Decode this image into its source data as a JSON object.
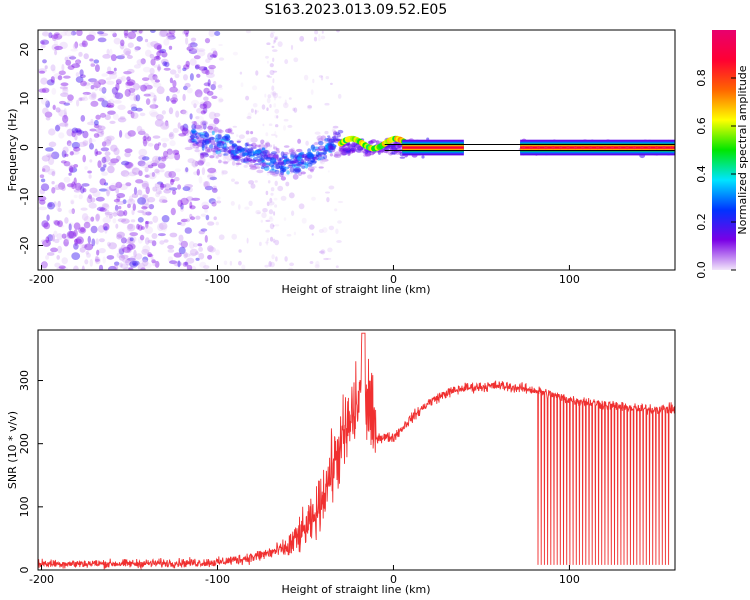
{
  "title": "S163.2023.013.09.52.E05",
  "chart_data": [
    {
      "type": "heatmap",
      "xlabel": "Height of straight line (km)",
      "ylabel": "Frequency (Hz)",
      "xlim": [
        -202,
        160
      ],
      "ylim": [
        -25,
        24
      ],
      "xticks": [
        -200,
        -100,
        0,
        100
      ],
      "yticks": [
        -20,
        -10,
        0,
        10,
        20
      ],
      "colorbar": {
        "label": "Normalized spectral amplitude",
        "range": [
          0,
          1
        ],
        "ticks": [
          0.0,
          0.2,
          0.4,
          0.6,
          0.8
        ],
        "colors": [
          "#f2e6fa",
          "#7a00e6",
          "#0033ff",
          "#00e5ff",
          "#00e600",
          "#ffff00",
          "#ff6600",
          "#ff0033",
          "#e8006e"
        ]
      },
      "reference_line_hz": 0,
      "features": {
        "noise_region_km": [
          -200,
          -30
        ],
        "transition_region_km": [
          -100,
          -30
        ],
        "carrier_region_km": [
          -30,
          160
        ],
        "data_gap_km": [
          40,
          72
        ]
      }
    },
    {
      "type": "line",
      "xlabel": "Height of straight line (km)",
      "ylabel": "SNR (10 * v/v)",
      "xlim": [
        -202,
        160
      ],
      "ylim": [
        0,
        380
      ],
      "xticks": [
        -200,
        -100,
        0,
        100
      ],
      "yticks": [
        0,
        100,
        200,
        300
      ],
      "color": "#f03030",
      "series": [
        {
          "x": [
            -200,
            -150,
            -100,
            -80,
            -60,
            -45,
            -35,
            -25,
            -17,
            -10,
            0,
            10,
            20,
            30,
            40,
            60,
            80,
            100,
            120,
            140,
            160
          ],
          "values": [
            10,
            10,
            12,
            20,
            35,
            80,
            160,
            230,
            290,
            210,
            210,
            240,
            265,
            280,
            288,
            292,
            285,
            270,
            262,
            255,
            255
          ]
        }
      ],
      "spike_peak": {
        "x": -17,
        "y": 375
      },
      "dropout_region_km": [
        82,
        158
      ]
    }
  ]
}
